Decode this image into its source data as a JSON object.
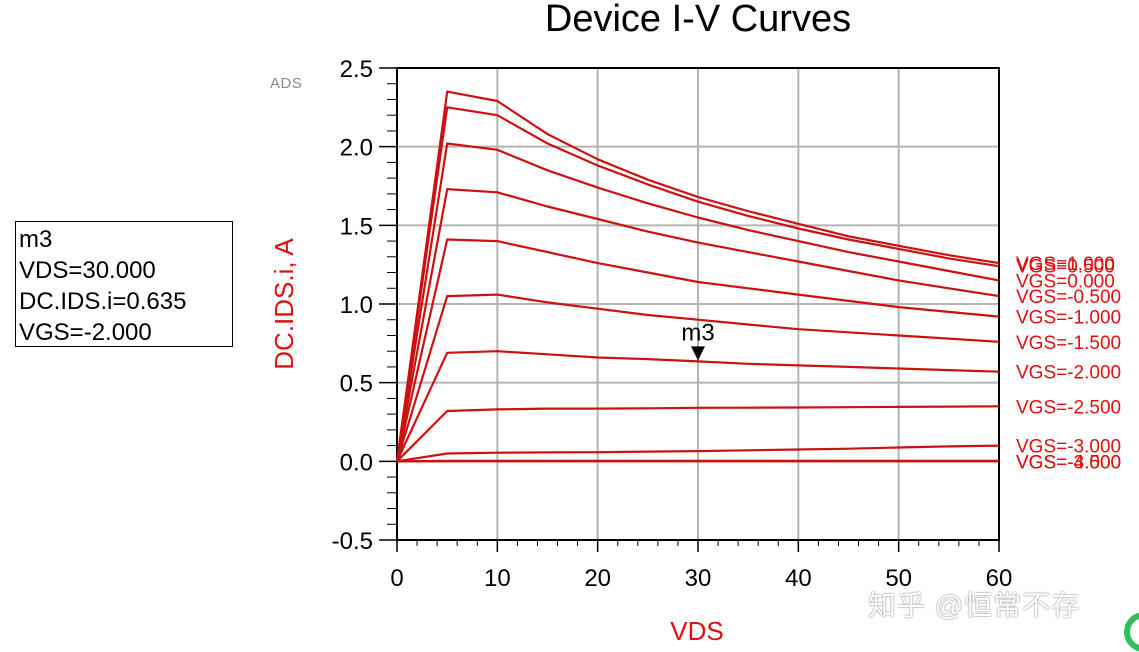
{
  "marker": {
    "name": "m3",
    "line_vds": "VDS=30.000",
    "line_ids": "DC.IDS.i=0.635",
    "line_vgs": "VGS=-2.000"
  },
  "watermark": "知乎 @恒常不存",
  "logo_text": "ADS",
  "colors": {
    "curve": "#cc1111",
    "label": "#e01010",
    "grid": "#b4b4b4",
    "axis": "#000000"
  },
  "chart_data": {
    "type": "line",
    "title": "Device I-V Curves",
    "xlabel": "VDS",
    "ylabel": "DC.IDS.i, A",
    "xlim": [
      0,
      60
    ],
    "ylim": [
      -0.5,
      2.5
    ],
    "xticks": [
      0,
      10,
      20,
      30,
      40,
      50,
      60
    ],
    "xtick_labels": [
      "0",
      "10",
      "20",
      "30",
      "40",
      "50",
      "60"
    ],
    "yticks": [
      -0.5,
      0.0,
      0.5,
      1.0,
      1.5,
      2.0,
      2.5
    ],
    "ytick_labels": [
      "-0.5",
      "0.0",
      "0.5",
      "1.0",
      "1.5",
      "2.0",
      "2.5"
    ],
    "grid": true,
    "x": [
      0,
      5,
      10,
      15,
      20,
      25,
      30,
      35,
      40,
      45,
      50,
      55,
      60
    ],
    "series": [
      {
        "name": "VGS=1.000",
        "values": [
          0,
          2.35,
          2.29,
          2.08,
          1.92,
          1.79,
          1.68,
          1.59,
          1.51,
          1.43,
          1.37,
          1.31,
          1.26
        ]
      },
      {
        "name": "VGS=0.500",
        "values": [
          0,
          2.25,
          2.2,
          2.02,
          1.88,
          1.76,
          1.65,
          1.56,
          1.48,
          1.41,
          1.35,
          1.29,
          1.24
        ]
      },
      {
        "name": "VGS=0.000",
        "values": [
          0,
          2.02,
          1.98,
          1.85,
          1.74,
          1.64,
          1.55,
          1.47,
          1.4,
          1.33,
          1.27,
          1.21,
          1.15
        ]
      },
      {
        "name": "VGS=-0.500",
        "values": [
          0,
          1.73,
          1.71,
          1.62,
          1.54,
          1.46,
          1.39,
          1.33,
          1.27,
          1.21,
          1.15,
          1.1,
          1.05
        ]
      },
      {
        "name": "VGS=-1.000",
        "values": [
          0,
          1.41,
          1.4,
          1.33,
          1.26,
          1.2,
          1.14,
          1.1,
          1.06,
          1.02,
          0.98,
          0.95,
          0.92
        ]
      },
      {
        "name": "VGS=-1.500",
        "values": [
          0,
          1.05,
          1.06,
          1.01,
          0.97,
          0.93,
          0.9,
          0.87,
          0.84,
          0.82,
          0.8,
          0.78,
          0.76
        ]
      },
      {
        "name": "VGS=-2.000",
        "values": [
          0,
          0.69,
          0.7,
          0.68,
          0.66,
          0.65,
          0.635,
          0.62,
          0.61,
          0.6,
          0.59,
          0.58,
          0.57
        ]
      },
      {
        "name": "VGS=-2.500",
        "values": [
          0,
          0.32,
          0.33,
          0.335,
          0.335,
          0.337,
          0.34,
          0.341,
          0.342,
          0.344,
          0.346,
          0.348,
          0.35
        ]
      },
      {
        "name": "VGS=-3.000",
        "values": [
          0,
          0.05,
          0.055,
          0.057,
          0.058,
          0.062,
          0.065,
          0.07,
          0.075,
          0.08,
          0.088,
          0.095,
          0.1
        ]
      },
      {
        "name": "VGS=-3.500",
        "values": [
          0,
          0.003,
          0.003,
          0.003,
          0.003,
          0.003,
          0.003,
          0.003,
          0.003,
          0.003,
          0.003,
          0.003,
          0.003
        ]
      },
      {
        "name": "VGS=-4.000",
        "values": [
          0,
          0,
          0,
          0,
          0,
          0,
          0,
          0,
          0,
          0,
          0,
          0,
          0
        ]
      }
    ],
    "right_labels": [
      {
        "text": "VGS=1.000",
        "at": 1.26
      },
      {
        "text": "VGS=0.500",
        "at": 1.245
      },
      {
        "text": "VGS=0.000",
        "at": 1.15
      },
      {
        "text": "VGS=-0.500",
        "at": 1.05
      },
      {
        "text": "VGS=-1.000",
        "at": 0.92
      },
      {
        "text": "VGS=-1.500",
        "at": 0.76
      },
      {
        "text": "VGS=-2.000",
        "at": 0.57
      },
      {
        "text": "VGS=-2.500",
        "at": 0.35
      },
      {
        "text": "VGS=-3.000",
        "at": 0.1
      },
      {
        "text": "VGS=-3.500",
        "at": 0.0
      },
      {
        "text": "VGS=-4.000",
        "at": 0.0
      }
    ],
    "annotation": {
      "text": "m3",
      "x": 30,
      "y": 0.635
    }
  }
}
